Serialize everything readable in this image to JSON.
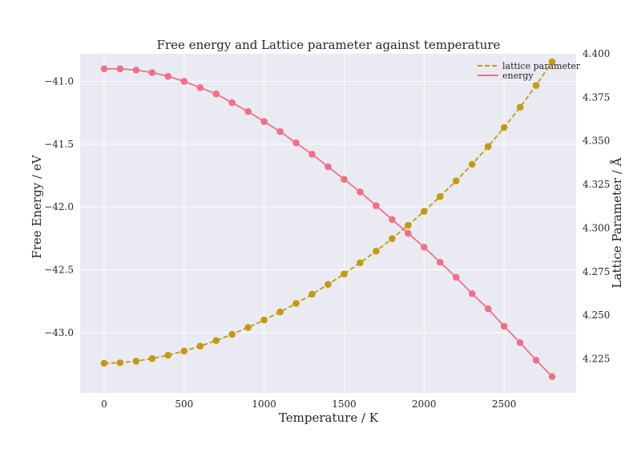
{
  "chart_data": {
    "type": "line",
    "title": "Free energy and Lattice parameter against temperature",
    "xlabel": "Temperature / K",
    "ylabel_left": "Free Energy / eV",
    "ylabel_right": "Lattice Parameter / Å",
    "xlim": [
      -150,
      2950
    ],
    "ylim_left": [
      -43.48,
      -40.78
    ],
    "ylim_right": [
      4.2055,
      4.4
    ],
    "x_ticks": [
      0,
      500,
      1000,
      1500,
      2000,
      2500
    ],
    "y_left_ticks": [
      -41.0,
      -41.5,
      -42.0,
      -42.5,
      -43.0
    ],
    "y_left_tick_labels": [
      "−41.0",
      "−41.5",
      "−42.0",
      "−42.5",
      "−43.0"
    ],
    "y_right_ticks": [
      4.225,
      4.25,
      4.275,
      4.3,
      4.325,
      4.35,
      4.375,
      4.4
    ],
    "y_right_tick_labels": [
      "4.225",
      "4.250",
      "4.275",
      "4.300",
      "4.325",
      "4.350",
      "4.375",
      "4.400"
    ],
    "grid": true,
    "legend_position": "top-right",
    "x": [
      0,
      100,
      200,
      300,
      400,
      500,
      600,
      700,
      800,
      900,
      1000,
      1100,
      1200,
      1300,
      1400,
      1500,
      1600,
      1700,
      1800,
      1900,
      2000,
      2100,
      2200,
      2300,
      2400,
      2500,
      2600,
      2700,
      2800
    ],
    "series": [
      {
        "name": "lattice parameter",
        "axis": "right",
        "color": "#c49a14",
        "dash": true,
        "values": [
          4.2225,
          4.2228,
          4.2237,
          4.2252,
          4.2271,
          4.2295,
          4.2323,
          4.2355,
          4.2391,
          4.243,
          4.2473,
          4.2519,
          4.2568,
          4.2621,
          4.2677,
          4.2737,
          4.2801,
          4.2868,
          4.294,
          4.3016,
          4.3096,
          4.3181,
          4.3271,
          4.3366,
          4.3468,
          4.3577,
          4.3693,
          4.3818,
          4.3953
        ]
      },
      {
        "name": "energy",
        "axis": "left",
        "color": "#f07184",
        "dash": false,
        "values": [
          -40.9,
          -40.9,
          -40.91,
          -40.93,
          -40.96,
          -41.0,
          -41.05,
          -41.1,
          -41.17,
          -41.24,
          -41.32,
          -41.4,
          -41.49,
          -41.58,
          -41.68,
          -41.78,
          -41.88,
          -41.99,
          -42.1,
          -42.21,
          -42.32,
          -42.44,
          -42.56,
          -42.69,
          -42.81,
          -42.95,
          -43.08,
          -43.22,
          -43.35
        ]
      }
    ]
  }
}
